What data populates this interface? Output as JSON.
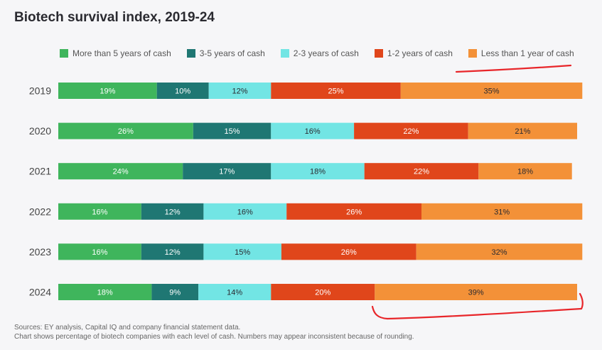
{
  "chart_data": {
    "type": "bar",
    "orientation": "horizontal",
    "stacked": true,
    "title": "Biotech survival index, 2019-24",
    "categories": [
      "2019",
      "2020",
      "2021",
      "2022",
      "2023",
      "2024"
    ],
    "series": [
      {
        "name": "More than 5 years of cash",
        "color": "#3fb55c",
        "values": [
          19,
          26,
          24,
          16,
          16,
          18
        ]
      },
      {
        "name": "3-5 years of cash",
        "color": "#1f7773",
        "values": [
          10,
          15,
          17,
          12,
          12,
          9
        ]
      },
      {
        "name": "2-3 years of cash",
        "color": "#72e5e4",
        "values": [
          12,
          16,
          18,
          16,
          15,
          14
        ]
      },
      {
        "name": "1-2 years of cash",
        "color": "#e0461b",
        "values": [
          25,
          22,
          22,
          26,
          26,
          20
        ]
      },
      {
        "name": "Less than 1 year of cash",
        "color": "#f39138",
        "values": [
          35,
          21,
          18,
          31,
          32,
          39
        ]
      }
    ],
    "value_suffix": "%",
    "xlim": [
      0,
      100
    ],
    "legend_position": "top",
    "grid": false
  },
  "text_colors": [
    "#ffffff",
    "#ffffff",
    "#2a2a30",
    "#ffffff",
    "#2a2a30"
  ],
  "sources": {
    "line1": "Sources: EY analysis, Capital IQ and company financial statement data.",
    "line2": "Chart shows percentage of biotech companies with each level of cash. Numbers may appear inconsistent because of rounding."
  },
  "annotation_color": "#e8262a"
}
